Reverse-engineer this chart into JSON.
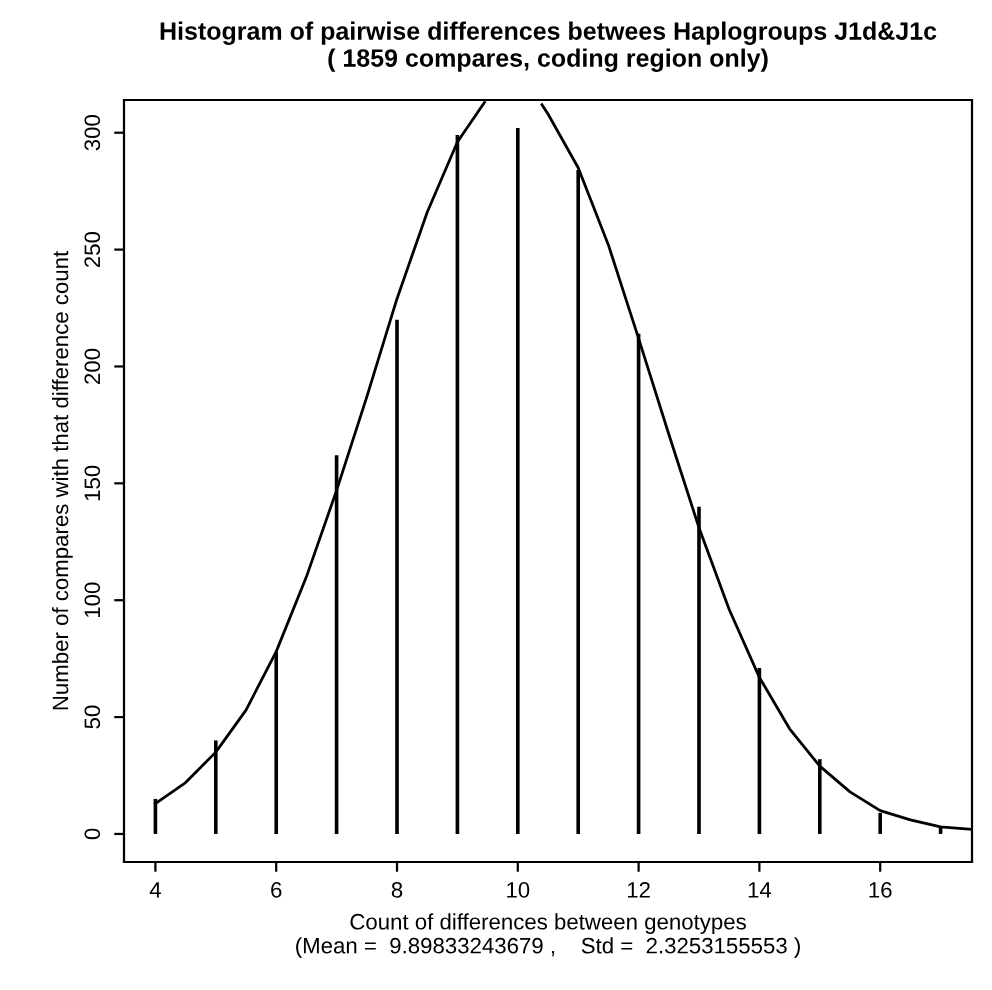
{
  "chart_data": {
    "type": "bar",
    "title": "Histogram of pairwise differences betwees Haplogroups J1d&J1c\n( 1859 compares, coding region only)",
    "xlabel": "Count of differences between genotypes\n(Mean =  9.89833243679 ,    Std =  2.3253155553 )",
    "ylabel": "Number of compares with that difference count",
    "series": [
      {
        "color": "#000000",
        "x": [
          4,
          5,
          6,
          7,
          8,
          9,
          10,
          11,
          12,
          13,
          14,
          15,
          16,
          17
        ],
        "values": [
          15,
          40,
          78,
          162,
          220,
          299,
          302,
          284,
          214,
          140,
          71,
          32,
          9,
          3
        ]
      },
      {
        "type": "line",
        "color": "#000000",
        "x": [
          4,
          4.5,
          5,
          5.5,
          6,
          6.5,
          7,
          7.5,
          8,
          8.5,
          9,
          9.45,
          9.7,
          10.2,
          10.4,
          10.5,
          11,
          11.5,
          12,
          12.5,
          13,
          13.5,
          14,
          14.5,
          15,
          15.5,
          16,
          16.5,
          17,
          17.5
        ],
        "values": [
          13,
          22,
          35,
          53,
          78,
          110,
          147,
          187,
          229,
          266,
          296,
          313,
          null,
          null,
          312,
          308,
          285,
          252,
          212,
          171,
          131,
          96,
          67,
          45,
          29,
          18,
          10,
          6,
          3,
          2
        ]
      }
    ],
    "xlim": [
      3.48,
      17.52
    ],
    "ylim": [
      -12,
      314
    ],
    "xticks": [
      4,
      6,
      8,
      10,
      12,
      14,
      16
    ],
    "yticks": [
      0,
      50,
      100,
      150,
      200,
      250,
      300
    ],
    "grid": false,
    "legend": false
  }
}
